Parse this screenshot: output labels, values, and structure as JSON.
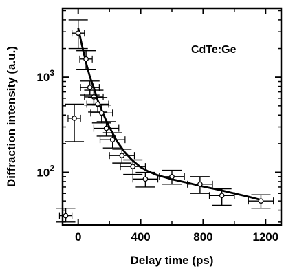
{
  "chart_data": {
    "type": "scatter",
    "annotation": "CdTe:Ge",
    "xlabel": "Delay time (ps)",
    "ylabel": "Diffraction intensity (a.u.)",
    "xlim": [
      -100,
      1300
    ],
    "ylim": [
      28,
      5300
    ],
    "yscale": "log",
    "x_ticks": [
      {
        "value": 0,
        "label": "0"
      },
      {
        "value": 400,
        "label": "400"
      },
      {
        "value": 800,
        "label": "800"
      },
      {
        "value": 1200,
        "label": "1200"
      }
    ],
    "y_ticks": [
      {
        "value": 100,
        "base": "10",
        "exp": "2"
      },
      {
        "value": 1000,
        "base": "10",
        "exp": "3"
      }
    ],
    "points": [
      {
        "x": -80,
        "y": 35,
        "xerr": 40,
        "yerr_lo": 5,
        "yerr_hi": 7
      },
      {
        "x": -25,
        "y": 370,
        "xerr": 40,
        "yerr_lo": 160,
        "yerr_hi": 150
      },
      {
        "x": 0,
        "y": 2900,
        "xerr": 40,
        "yerr_lo": 900,
        "yerr_hi": 1100
      },
      {
        "x": 50,
        "y": 1550,
        "xerr": 40,
        "yerr_lo": 350,
        "yerr_hi": 350
      },
      {
        "x": 75,
        "y": 780,
        "xerr": 60,
        "yerr_lo": 130,
        "yerr_hi": 130
      },
      {
        "x": 100,
        "y": 620,
        "xerr": 60,
        "yerr_lo": 110,
        "yerr_hi": 110
      },
      {
        "x": 125,
        "y": 520,
        "xerr": 70,
        "yerr_lo": 90,
        "yerr_hi": 90
      },
      {
        "x": 150,
        "y": 420,
        "xerr": 70,
        "yerr_lo": 90,
        "yerr_hi": 90
      },
      {
        "x": 180,
        "y": 290,
        "xerr": 80,
        "yerr_lo": 50,
        "yerr_hi": 50
      },
      {
        "x": 220,
        "y": 220,
        "xerr": 80,
        "yerr_lo": 40,
        "yerr_hi": 40
      },
      {
        "x": 280,
        "y": 150,
        "xerr": 80,
        "yerr_lo": 25,
        "yerr_hi": 25
      },
      {
        "x": 350,
        "y": 115,
        "xerr": 80,
        "yerr_lo": 20,
        "yerr_hi": 20
      },
      {
        "x": 430,
        "y": 85,
        "xerr": 80,
        "yerr_lo": 15,
        "yerr_hi": 15
      },
      {
        "x": 600,
        "y": 90,
        "xerr": 80,
        "yerr_lo": 15,
        "yerr_hi": 15
      },
      {
        "x": 780,
        "y": 75,
        "xerr": 80,
        "yerr_lo": 15,
        "yerr_hi": 15
      },
      {
        "x": 920,
        "y": 57,
        "xerr": 80,
        "yerr_lo": 12,
        "yerr_hi": 10
      },
      {
        "x": 1170,
        "y": 50,
        "xerr": 80,
        "yerr_lo": 8,
        "yerr_hi": 8
      }
    ],
    "fit": {
      "x": [
        0,
        25,
        50,
        75,
        100,
        125,
        150,
        175,
        200,
        250,
        300,
        350,
        400,
        450,
        500,
        600,
        700,
        800,
        900,
        1000,
        1100,
        1180
      ],
      "y": [
        3290,
        2128,
        1420,
        1004,
        777,
        570,
        451,
        361,
        297,
        210,
        161,
        132,
        113,
        102,
        94.2,
        84.4,
        77.6,
        70.8,
        65.5,
        60.0,
        54.9,
        50.7
      ]
    }
  }
}
